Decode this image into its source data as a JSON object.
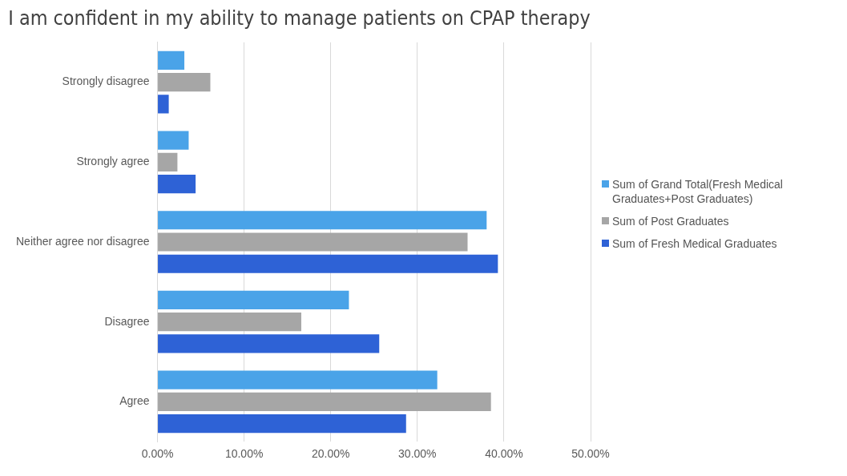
{
  "chart_data": {
    "type": "bar",
    "orientation": "horizontal",
    "title": "I am confident in my ability to manage patients on CPAP therapy",
    "categories": [
      "Strongly disagree",
      "Strongly agree",
      "Neither agree nor disagree",
      "Disagree",
      "Agree"
    ],
    "series": [
      {
        "name": "Sum of Grand Total(Fresh Medical Graduates+Post Graduates)",
        "color": "#4aa3e8",
        "values": [
          3.1,
          3.6,
          38.0,
          22.1,
          32.3
        ]
      },
      {
        "name": "Sum of Post Graduates",
        "color": "#a6a6a6",
        "values": [
          6.1,
          2.3,
          35.8,
          16.6,
          38.5
        ]
      },
      {
        "name": "Sum of Fresh Medical Graduates",
        "color": "#2e62d6",
        "values": [
          1.3,
          4.4,
          39.3,
          25.6,
          28.7
        ]
      }
    ],
    "xlim": [
      0,
      50
    ],
    "xticks": [
      {
        "value": 0,
        "label": "0.00%"
      },
      {
        "value": 10,
        "label": "10.00%"
      },
      {
        "value": 20,
        "label": "20.00%"
      },
      {
        "value": 30,
        "label": "30.00%"
      },
      {
        "value": 40,
        "label": "40.00%"
      },
      {
        "value": 50,
        "label": "50.00%"
      }
    ],
    "grid": "x",
    "legend": "right"
  }
}
